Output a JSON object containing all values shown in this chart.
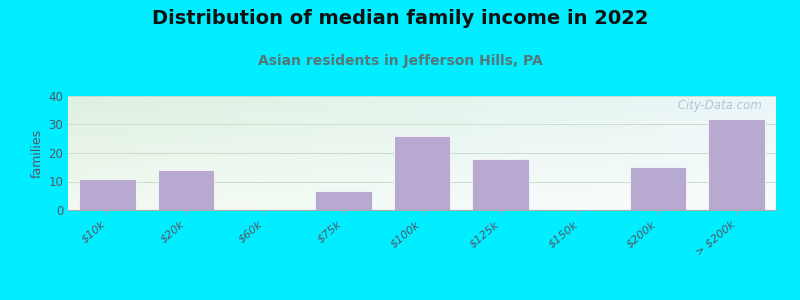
{
  "title": "Distribution of median family income in 2022",
  "subtitle": "Asian residents in Jefferson Hills, PA",
  "categories": [
    "$10k",
    "$20k",
    "$60k",
    "$75k",
    "$100k",
    "$125k",
    "$150k",
    "$200k",
    "> $200k"
  ],
  "values": [
    11,
    14,
    0,
    6.5,
    26,
    18,
    0,
    15,
    32
  ],
  "bar_color": "#b8a9d0",
  "background_color": "#00eeff",
  "plot_bg_topleft": "#e8f5e8",
  "plot_bg_topright": "#f0fafc",
  "plot_bg_bottom": "#f8fcf8",
  "ylabel": "families",
  "ylim": [
    0,
    40
  ],
  "yticks": [
    0,
    10,
    20,
    30,
    40
  ],
  "grid_color": "#ccddcc",
  "title_fontsize": 14,
  "subtitle_fontsize": 10,
  "subtitle_color": "#557777",
  "watermark": " City-Data.com",
  "watermark_color": "#aabbcc"
}
